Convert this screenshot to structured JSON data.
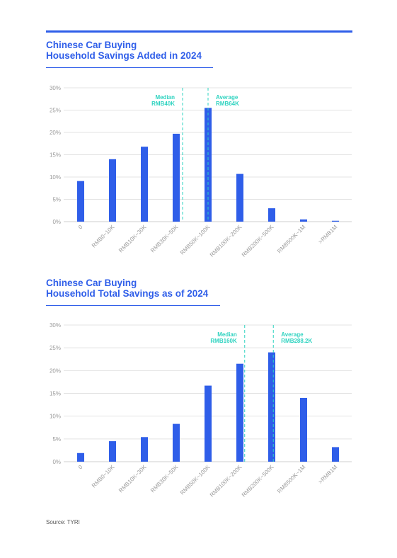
{
  "source": "Source: TYRI",
  "colors": {
    "accent": "#2f5ee9",
    "bar": "#2f5ee9",
    "annotation": "#2ed3c0",
    "grid": "#e3e3e3",
    "tick": "#9a9a9a"
  },
  "chart_data": [
    {
      "type": "bar",
      "title_lines": [
        "Chinese Car Buying",
        "Household Savings Added in 2024"
      ],
      "categories": [
        "0",
        "RMB0~10K",
        "RMB10K~30K",
        "RMB30K~50K",
        "RMB50K~100K",
        "RMB100K~200K",
        "RMB200K~500K",
        "RMB500K~1M",
        ">RMB1M"
      ],
      "values": [
        9.1,
        14.0,
        16.8,
        19.7,
        25.5,
        10.7,
        3.0,
        0.5,
        0.2
      ],
      "ylim": [
        0,
        30
      ],
      "yticks": [
        "0%",
        "5%",
        "10%",
        "15%",
        "20%",
        "25%",
        "30%"
      ],
      "ytick_values": [
        0,
        5,
        10,
        15,
        20,
        25,
        30
      ],
      "grid": true,
      "annotations": [
        {
          "label": [
            "Median",
            "RMB40K"
          ],
          "x_position": 3.2,
          "align": "right"
        },
        {
          "label": [
            "Average",
            "RMB64K"
          ],
          "x_position": 4.0,
          "align": "left"
        }
      ]
    },
    {
      "type": "bar",
      "title_lines": [
        "Chinese Car Buying",
        "Household Total Savings as of 2024"
      ],
      "categories": [
        "0",
        "RMB0~10K",
        "RMB10K~30K",
        "RMB30K~50K",
        "RMB50K~100K",
        "RMB100K~200K",
        "RMB200K~500K",
        "RMB500K~1M",
        ">RMB1M"
      ],
      "values": [
        1.9,
        4.5,
        5.4,
        8.3,
        16.7,
        21.5,
        24.0,
        14.0,
        3.2
      ],
      "ylim": [
        0,
        30
      ],
      "yticks": [
        "0%",
        "5%",
        "10%",
        "15%",
        "20%",
        "25%",
        "30%"
      ],
      "ytick_values": [
        0,
        5,
        10,
        15,
        20,
        25,
        30
      ],
      "grid": true,
      "annotations": [
        {
          "label": [
            "Median",
            "RMB160K"
          ],
          "x_position": 5.15,
          "align": "right"
        },
        {
          "label": [
            "Average",
            "RMB288.2K"
          ],
          "x_position": 6.05,
          "align": "left"
        }
      ]
    }
  ]
}
